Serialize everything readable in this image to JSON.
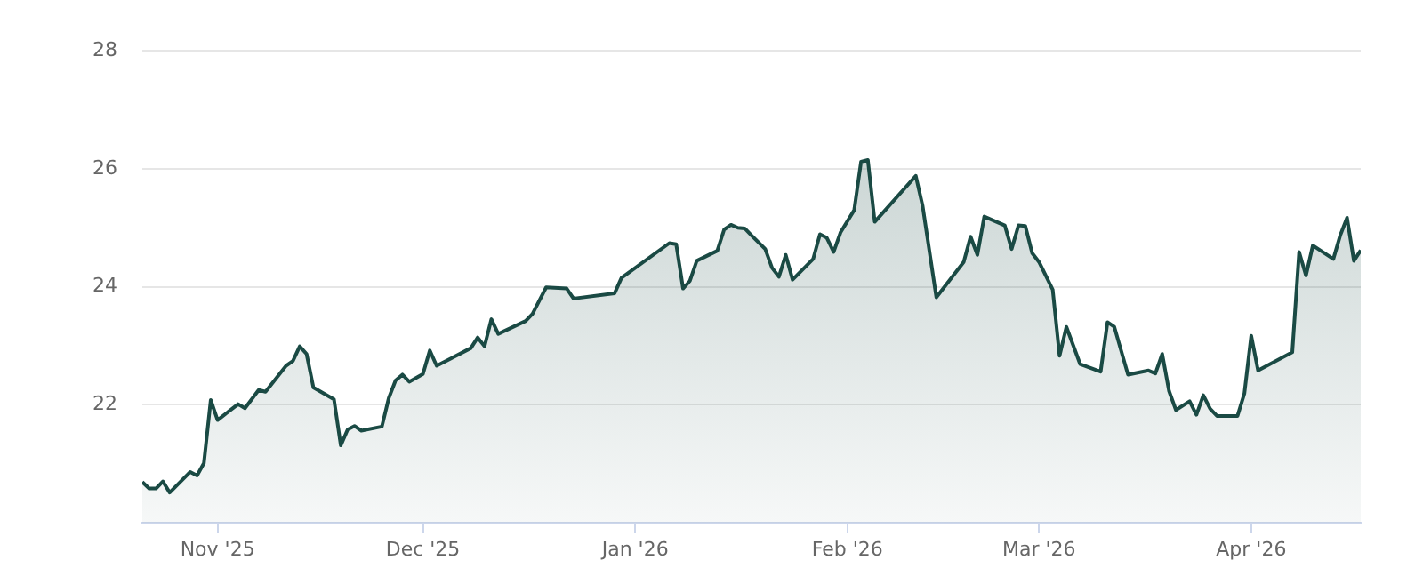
{
  "chart_data": {
    "type": "area",
    "x": [
      "2025-10-21",
      "2025-10-22",
      "2025-10-23",
      "2025-10-24",
      "2025-10-25",
      "2025-10-28",
      "2025-10-29",
      "2025-10-30",
      "2025-10-31",
      "2025-11-01",
      "2025-11-04",
      "2025-11-05",
      "2025-11-07",
      "2025-11-08",
      "2025-11-11",
      "2025-11-12",
      "2025-11-13",
      "2025-11-14",
      "2025-11-15",
      "2025-11-18",
      "2025-11-19",
      "2025-11-20",
      "2025-11-21",
      "2025-11-22",
      "2025-11-25",
      "2025-11-26",
      "2025-11-27",
      "2025-11-28",
      "2025-11-29",
      "2025-12-01",
      "2025-12-02",
      "2025-12-03",
      "2025-12-08",
      "2025-12-09",
      "2025-12-10",
      "2025-12-11",
      "2025-12-12",
      "2025-12-16",
      "2025-12-17",
      "2025-12-19",
      "2025-12-22",
      "2025-12-23",
      "2025-12-29",
      "2025-12-30",
      "2026-01-06",
      "2026-01-07",
      "2026-01-08",
      "2026-01-09",
      "2026-01-10",
      "2026-01-13",
      "2026-01-14",
      "2026-01-15",
      "2026-01-16",
      "2026-01-17",
      "2026-01-18",
      "2026-01-20",
      "2026-01-21",
      "2026-01-22",
      "2026-01-23",
      "2026-01-24",
      "2026-01-27",
      "2026-01-28",
      "2026-01-29",
      "2026-01-30",
      "2026-01-31",
      "2026-02-02",
      "2026-02-03",
      "2026-02-04",
      "2026-02-05",
      "2026-02-11",
      "2026-02-12",
      "2026-02-14",
      "2026-02-18",
      "2026-02-19",
      "2026-02-20",
      "2026-02-21",
      "2026-02-24",
      "2026-02-25",
      "2026-02-26",
      "2026-02-27",
      "2026-02-28",
      "2026-03-01",
      "2026-03-03",
      "2026-03-04",
      "2026-03-05",
      "2026-03-07",
      "2026-03-10",
      "2026-03-11",
      "2026-03-12",
      "2026-03-14",
      "2026-03-17",
      "2026-03-18",
      "2026-03-19",
      "2026-03-20",
      "2026-03-21",
      "2026-03-23",
      "2026-03-24",
      "2026-03-25",
      "2026-03-26",
      "2026-03-27",
      "2026-03-30",
      "2026-03-31",
      "2026-04-01",
      "2026-04-02",
      "2026-04-07",
      "2026-04-08",
      "2026-04-09",
      "2026-04-10",
      "2026-04-13",
      "2026-04-14",
      "2026-04-15",
      "2026-04-16",
      "2026-04-17"
    ],
    "series": [
      {
        "color": "#1a4a44",
        "values": [
          20.69,
          20.58,
          20.58,
          20.7,
          20.51,
          20.86,
          20.8,
          21.01,
          22.08,
          21.74,
          22.01,
          21.94,
          22.25,
          22.22,
          22.66,
          22.74,
          22.99,
          22.86,
          22.29,
          22.09,
          21.31,
          21.58,
          21.64,
          21.56,
          21.63,
          22.11,
          22.41,
          22.51,
          22.39,
          22.52,
          22.92,
          22.66,
          22.96,
          23.14,
          22.99,
          23.45,
          23.2,
          23.42,
          23.54,
          23.99,
          23.97,
          23.8,
          23.89,
          24.15,
          24.74,
          24.72,
          23.97,
          24.1,
          24.44,
          24.61,
          24.97,
          25.05,
          25.0,
          24.99,
          24.87,
          24.64,
          24.32,
          24.17,
          24.54,
          24.12,
          24.47,
          24.89,
          24.83,
          24.59,
          24.92,
          25.3,
          26.12,
          26.15,
          25.1,
          25.88,
          25.37,
          23.82,
          24.42,
          24.85,
          24.54,
          25.19,
          25.04,
          24.64,
          25.04,
          25.03,
          24.57,
          24.42,
          23.95,
          22.83,
          23.32,
          22.69,
          22.56,
          23.4,
          23.32,
          22.51,
          22.58,
          22.53,
          22.86,
          22.23,
          21.91,
          22.06,
          21.83,
          22.16,
          21.93,
          21.81,
          21.81,
          22.19,
          23.17,
          22.58,
          22.89,
          24.59,
          24.19,
          24.7,
          24.47,
          24.87,
          25.17,
          24.44,
          24.62
        ]
      }
    ],
    "xlim": [
      "2025-10-21",
      "2026-04-17"
    ],
    "xticks": [
      {
        "value": "2025-11-01",
        "label": "Nov '25"
      },
      {
        "value": "2025-12-01",
        "label": "Dec '25"
      },
      {
        "value": "2026-01-01",
        "label": "Jan '26"
      },
      {
        "value": "2026-02-01",
        "label": "Feb '26"
      },
      {
        "value": "2026-03-01",
        "label": "Mar '26"
      },
      {
        "value": "2026-04-01",
        "label": "Apr '26"
      }
    ],
    "ylim": [
      20,
      28
    ],
    "yticks": [
      22,
      24,
      26,
      28
    ],
    "grid": "y",
    "legend": false,
    "marker": "none",
    "line_style": "solid"
  }
}
